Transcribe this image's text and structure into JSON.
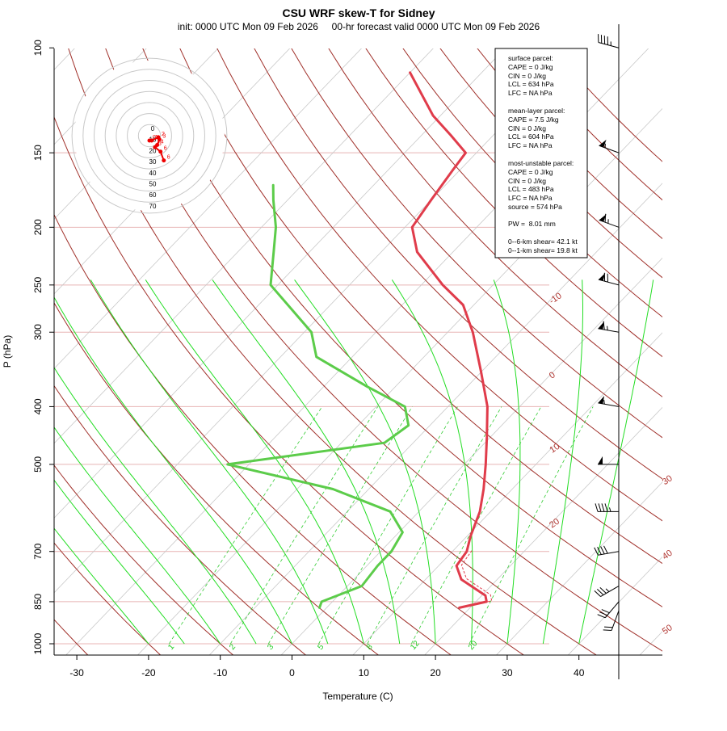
{
  "chart_data": {
    "type": "line",
    "title": "CSU WRF skew-T for Sidney",
    "subtitle": "init: 0000 UTC Mon 09 Feb 2026     00-hr forecast valid 0000 UTC Mon 09 Feb 2026",
    "xlabel": "Temperature (C)",
    "ylabel": "P (hPa)",
    "xlim": [
      -32,
      50
    ],
    "ylim": [
      1000,
      100
    ],
    "x_ticks": [
      "-30",
      "-20",
      "-10",
      "0",
      "10",
      "20",
      "30",
      "40"
    ],
    "y_ticks": [
      "100",
      "150",
      "200",
      "250",
      "300",
      "400",
      "500",
      "700",
      "850",
      "1000"
    ],
    "series": [
      {
        "key": "temperature",
        "color": "#e03c4b",
        "points": [
          [
            870,
            18.5
          ],
          [
            850,
            21.5
          ],
          [
            830,
            20.5
          ],
          [
            780,
            15.0
          ],
          [
            740,
            12.5
          ],
          [
            700,
            12.0
          ],
          [
            660,
            10.5
          ],
          [
            600,
            8.5
          ],
          [
            550,
            6.0
          ],
          [
            500,
            3.0
          ],
          [
            450,
            -0.5
          ],
          [
            400,
            -4.5
          ],
          [
            350,
            -10.0
          ],
          [
            300,
            -16.5
          ],
          [
            270,
            -21.5
          ],
          [
            250,
            -27.0
          ],
          [
            220,
            -35.0
          ],
          [
            200,
            -39.0
          ],
          [
            180,
            -40.0
          ],
          [
            160,
            -41.0
          ],
          [
            150,
            -41.5
          ],
          [
            140,
            -46.0
          ],
          [
            130,
            -51.0
          ],
          [
            110,
            -60.0
          ]
        ]
      },
      {
        "key": "dewpoint",
        "color": "#5ccc4a",
        "points": [
          [
            870,
            -1.0
          ],
          [
            850,
            -1.5
          ],
          [
            800,
            2.0
          ],
          [
            740,
            1.5
          ],
          [
            700,
            1.5
          ],
          [
            650,
            0.5
          ],
          [
            600,
            -4.0
          ],
          [
            550,
            -15.0
          ],
          [
            500,
            -33.0
          ],
          [
            460,
            -14.0
          ],
          [
            430,
            -13.0
          ],
          [
            400,
            -16.0
          ],
          [
            370,
            -24.0
          ],
          [
            330,
            -35.0
          ],
          [
            300,
            -39.0
          ],
          [
            250,
            -51.0
          ],
          [
            220,
            -55.0
          ],
          [
            200,
            -58.0
          ],
          [
            180,
            -62.0
          ],
          [
            170,
            -64.0
          ]
        ]
      }
    ],
    "isotherm_labels": [
      {
        "t": -10,
        "text": "-10"
      },
      {
        "t": 0,
        "text": "0"
      },
      {
        "t": 10,
        "text": "10"
      },
      {
        "t": 20,
        "text": "20"
      },
      {
        "t": 30,
        "text": "30"
      },
      {
        "t": 40,
        "text": "40"
      },
      {
        "t": 50,
        "text": "50"
      }
    ],
    "mixing_ratio_labels": [
      "1",
      "2",
      "3",
      "5",
      "8",
      "12",
      "20"
    ],
    "hodograph": {
      "ring_labels": [
        "0",
        "10",
        "20",
        "30",
        "40",
        "50",
        "60",
        "70"
      ],
      "trace": [
        {
          "u": 0,
          "v": 0,
          "label": "0"
        },
        {
          "u": 2,
          "v": 0,
          "label": "1"
        },
        {
          "u": 8,
          "v": 3,
          "label": "2"
        },
        {
          "u": 9,
          "v": 1,
          "label": "3"
        },
        {
          "u": 7,
          "v": -4,
          "label": "4"
        },
        {
          "u": 5,
          "v": -6,
          "label": "5"
        },
        {
          "u": 10,
          "v": -10,
          "label": "6"
        },
        {
          "u": 13,
          "v": -18,
          "label": "6"
        }
      ]
    },
    "wind_barbs": [
      {
        "p": 880,
        "dir": 200,
        "spd": 20
      },
      {
        "p": 850,
        "dir": 220,
        "spd": 30
      },
      {
        "p": 800,
        "dir": 240,
        "spd": 35
      },
      {
        "p": 700,
        "dir": 260,
        "spd": 40
      },
      {
        "p": 600,
        "dir": 270,
        "spd": 45
      },
      {
        "p": 500,
        "dir": 270,
        "spd": 50
      },
      {
        "p": 400,
        "dir": 280,
        "spd": 55
      },
      {
        "p": 300,
        "dir": 280,
        "spd": 65
      },
      {
        "p": 250,
        "dir": 285,
        "spd": 70
      },
      {
        "p": 200,
        "dir": 290,
        "spd": 65
      },
      {
        "p": 150,
        "dir": 290,
        "spd": 55
      },
      {
        "p": 100,
        "dir": 285,
        "spd": 45
      }
    ],
    "legend_placement": "top-right",
    "grid": true
  },
  "info_box": {
    "surface_title": "surface parcel:",
    "surface_cape": "CAPE = 0 J/kg",
    "surface_cin": "CIN = 0 J/kg",
    "surface_lcl": "LCL = 634 hPa",
    "surface_lfc": "LFC = NA hPa",
    "mean_title": "mean-layer parcel:",
    "mean_cape": "CAPE = 7.5 J/kg",
    "mean_cin": "CIN = 0 J/kg",
    "mean_lcl": "LCL = 604 hPa",
    "mean_lfc": "LFC = NA hPa",
    "mu_title": "most-unstable parcel:",
    "mu_cape": "CAPE = 0 J/kg",
    "mu_cin": "CIN = 0 J/kg",
    "mu_lcl": "LCL = 483 hPa",
    "mu_lfc": "LFC = NA hPa",
    "mu_source": "source = 574 hPa",
    "pw": "PW =  8.01 mm",
    "shear_6km": "0--6-km shear= 42.1 kt",
    "shear_1km": "0--1-km shear= 19.8 kt"
  },
  "colors": {
    "isotherm": "#c8c8c8",
    "isobar": "#e8b4b4",
    "dry_adiabat": "#a0302a",
    "moist_adiabat": "#22dd22",
    "mixing_ratio": "#33cc33",
    "temperature": "#e03c4b",
    "dewpoint": "#5ccc4a",
    "hodograph": "#ee0000"
  }
}
